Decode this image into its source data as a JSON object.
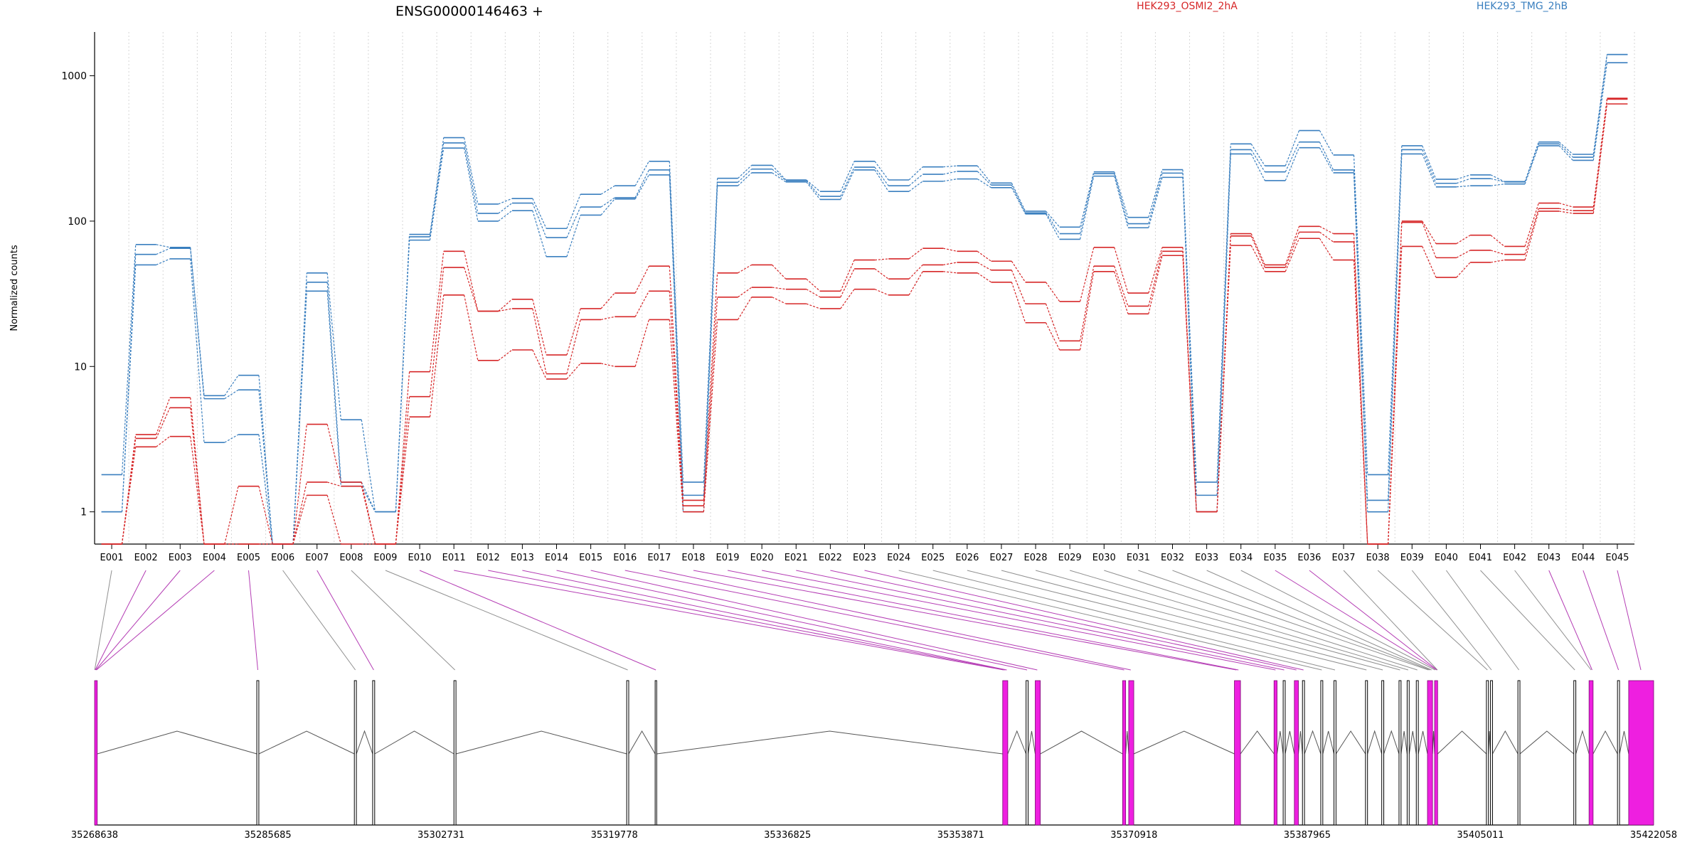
{
  "chart_data": {
    "type": "line",
    "title": "ENSG00000146463 +",
    "ylabel": "Normalized counts",
    "yscale": "log",
    "ylim": [
      0.6,
      2000
    ],
    "yticks": [
      1,
      10,
      100,
      1000
    ],
    "ytick_labels": [
      "1",
      "10",
      "100",
      "1000"
    ],
    "categories": [
      "E001",
      "E002",
      "E003",
      "E004",
      "E005",
      "E006",
      "E007",
      "E008",
      "E009",
      "E010",
      "E011",
      "E012",
      "E013",
      "E014",
      "E015",
      "E016",
      "E017",
      "E018",
      "E019",
      "E020",
      "E021",
      "E022",
      "E023",
      "E024",
      "E025",
      "E026",
      "E027",
      "E028",
      "E029",
      "E030",
      "E031",
      "E032",
      "E033",
      "E034",
      "E035",
      "E036",
      "E037",
      "E038",
      "E039",
      "E040",
      "E041",
      "E042",
      "E043",
      "E044",
      "E045"
    ],
    "legend": [
      {
        "label": "HEK293_OSMI2_2hA",
        "color": "#d62728"
      },
      {
        "label": "HEK293_TMG_2hB",
        "color": "#3a7fbf"
      }
    ],
    "series": [
      {
        "group": "HEK293_TMG_2hB",
        "color": "#3a7fbf",
        "values": [
          1.8,
          69,
          66,
          6.3,
          8.7,
          0.6,
          44,
          4.3,
          1,
          81,
          375,
          131,
          143,
          89,
          153,
          175,
          258,
          1.6,
          197,
          242,
          192,
          160,
          258,
          192,
          236,
          240,
          183,
          117,
          91,
          218,
          106,
          226,
          1.6,
          340,
          240,
          420,
          285,
          1.8,
          330,
          194,
          208,
          187,
          350,
          288,
          1400
        ]
      },
      {
        "group": "HEK293_TMG_2hB",
        "color": "#3a7fbf",
        "values": [
          1,
          59,
          65,
          6,
          6.9,
          0.6,
          38,
          1.6,
          1,
          78,
          345,
          113,
          133,
          77,
          125,
          145,
          225,
          1.3,
          185,
          228,
          190,
          148,
          235,
          175,
          210,
          220,
          177,
          114,
          82,
          212,
          96,
          214,
          1.3,
          310,
          218,
          350,
          225,
          1.2,
          310,
          182,
          196,
          186,
          340,
          275,
          1400
        ]
      },
      {
        "group": "HEK293_TMG_2hB",
        "color": "#3a7fbf",
        "values": [
          1,
          50,
          55,
          3,
          3.4,
          0.6,
          33,
          1.5,
          1,
          74,
          318,
          100,
          118,
          57,
          110,
          142,
          208,
          1,
          175,
          215,
          186,
          141,
          225,
          160,
          188,
          195,
          170,
          112,
          75,
          204,
          90,
          200,
          1,
          290,
          190,
          320,
          215,
          1,
          290,
          172,
          175,
          180,
          330,
          262,
          1230
        ]
      },
      {
        "group": "HEK293_OSMI2_2hA",
        "color": "#d62728",
        "values": [
          0.6,
          3.4,
          6.1,
          0.6,
          0.6,
          0.6,
          4,
          1.6,
          0.6,
          9.2,
          62,
          24,
          29,
          12,
          25,
          32,
          49,
          1.2,
          44,
          50,
          40,
          33,
          54,
          55,
          65,
          62,
          53,
          38,
          28,
          66,
          32,
          66,
          1,
          82,
          50,
          92,
          82,
          0.6,
          100,
          70,
          80,
          67,
          133,
          125,
          700
        ]
      },
      {
        "group": "HEK293_OSMI2_2hA",
        "color": "#d62728",
        "values": [
          0.6,
          3.2,
          5.2,
          0.6,
          1.5,
          0.6,
          1.6,
          1.5,
          0.6,
          6.2,
          48,
          24,
          25,
          8.9,
          21,
          22,
          33,
          1.1,
          30,
          35,
          34,
          30,
          47,
          40,
          50,
          52,
          46,
          27,
          15,
          49,
          26,
          62,
          1,
          79,
          48,
          84,
          72,
          0.6,
          98,
          56,
          63,
          59,
          122,
          118,
          690
        ]
      },
      {
        "group": "HEK293_OSMI2_2hA",
        "color": "#d62728",
        "values": [
          0.6,
          2.8,
          3.3,
          0.6,
          0.6,
          0.6,
          1.3,
          0.6,
          0.6,
          4.5,
          31,
          11,
          13,
          8.2,
          10.5,
          10,
          21,
          1,
          21,
          30,
          27,
          25,
          34,
          31,
          45,
          44,
          38,
          20,
          13,
          45,
          23,
          58,
          1,
          68,
          45,
          76,
          54,
          0.6,
          67,
          41,
          52,
          54,
          117,
          113,
          640
        ]
      }
    ],
    "gene_model": {
      "coordinate_labels": [
        "35268638",
        "35285685",
        "35302731",
        "35319778",
        "35336825",
        "35353871",
        "35370918",
        "35387965",
        "35405011",
        "35422058"
      ],
      "coord_range": [
        35268638,
        35422058
      ],
      "exons": [
        {
          "start": 35268638,
          "end": 35268900,
          "pink": true
        },
        {
          "start": 35284600,
          "end": 35284800,
          "pink": false
        },
        {
          "start": 35294200,
          "end": 35294400,
          "pink": false
        },
        {
          "start": 35296000,
          "end": 35296200,
          "pink": false
        },
        {
          "start": 35304000,
          "end": 35304200,
          "pink": false
        },
        {
          "start": 35321000,
          "end": 35321200,
          "pink": false
        },
        {
          "start": 35323800,
          "end": 35323950,
          "pink": false
        },
        {
          "start": 35358000,
          "end": 35358500,
          "pink": true
        },
        {
          "start": 35360300,
          "end": 35360500,
          "pink": false
        },
        {
          "start": 35361200,
          "end": 35361700,
          "pink": true
        },
        {
          "start": 35369800,
          "end": 35370100,
          "pink": true
        },
        {
          "start": 35370400,
          "end": 35370900,
          "pink": true
        },
        {
          "start": 35380800,
          "end": 35381400,
          "pink": true
        },
        {
          "start": 35384700,
          "end": 35385000,
          "pink": true
        },
        {
          "start": 35385600,
          "end": 35385800,
          "pink": false
        },
        {
          "start": 35386700,
          "end": 35387100,
          "pink": true
        },
        {
          "start": 35387500,
          "end": 35387700,
          "pink": false
        },
        {
          "start": 35389300,
          "end": 35389500,
          "pink": false
        },
        {
          "start": 35390600,
          "end": 35390800,
          "pink": false
        },
        {
          "start": 35393700,
          "end": 35393900,
          "pink": false
        },
        {
          "start": 35395300,
          "end": 35395500,
          "pink": false
        },
        {
          "start": 35397000,
          "end": 35397200,
          "pink": false
        },
        {
          "start": 35397800,
          "end": 35398000,
          "pink": false
        },
        {
          "start": 35398700,
          "end": 35398900,
          "pink": false
        },
        {
          "start": 35399800,
          "end": 35400300,
          "pink": true
        },
        {
          "start": 35400500,
          "end": 35400800,
          "pink": true
        },
        {
          "start": 35405600,
          "end": 35405800,
          "pink": false
        },
        {
          "start": 35406000,
          "end": 35406200,
          "pink": false
        },
        {
          "start": 35408700,
          "end": 35408900,
          "pink": false
        },
        {
          "start": 35414200,
          "end": 35414400,
          "pink": false
        },
        {
          "start": 35415700,
          "end": 35416100,
          "pink": true
        },
        {
          "start": 35418500,
          "end": 35418700,
          "pink": false
        },
        {
          "start": 35419600,
          "end": 35422058,
          "pink": true
        }
      ],
      "mapping": [
        {
          "bin": "E001",
          "coord": 35268650,
          "pink": false
        },
        {
          "bin": "E002",
          "coord": 35268700,
          "pink": true
        },
        {
          "bin": "E003",
          "coord": 35268760,
          "pink": true
        },
        {
          "bin": "E004",
          "coord": 35268820,
          "pink": true
        },
        {
          "bin": "E005",
          "coord": 35284700,
          "pink": true
        },
        {
          "bin": "E006",
          "coord": 35294300,
          "pink": false
        },
        {
          "bin": "E007",
          "coord": 35296100,
          "pink": true
        },
        {
          "bin": "E008",
          "coord": 35304100,
          "pink": false
        },
        {
          "bin": "E009",
          "coord": 35321100,
          "pink": false
        },
        {
          "bin": "E010",
          "coord": 35323870,
          "pink": true
        },
        {
          "bin": "E011",
          "coord": 35358100,
          "pink": true
        },
        {
          "bin": "E012",
          "coord": 35358250,
          "pink": true
        },
        {
          "bin": "E013",
          "coord": 35358400,
          "pink": true
        },
        {
          "bin": "E014",
          "coord": 35360400,
          "pink": true
        },
        {
          "bin": "E015",
          "coord": 35361400,
          "pink": true
        },
        {
          "bin": "E016",
          "coord": 35369950,
          "pink": true
        },
        {
          "bin": "E017",
          "coord": 35370600,
          "pink": true
        },
        {
          "bin": "E018",
          "coord": 35381000,
          "pink": true
        },
        {
          "bin": "E019",
          "coord": 35381200,
          "pink": true
        },
        {
          "bin": "E020",
          "coord": 35384850,
          "pink": true
        },
        {
          "bin": "E021",
          "coord": 35385700,
          "pink": true
        },
        {
          "bin": "E022",
          "coord": 35386900,
          "pink": true
        },
        {
          "bin": "E023",
          "coord": 35387600,
          "pink": true
        },
        {
          "bin": "E024",
          "coord": 35389400,
          "pink": false
        },
        {
          "bin": "E025",
          "coord": 35390700,
          "pink": false
        },
        {
          "bin": "E026",
          "coord": 35393800,
          "pink": false
        },
        {
          "bin": "E027",
          "coord": 35395400,
          "pink": false
        },
        {
          "bin": "E028",
          "coord": 35397100,
          "pink": false
        },
        {
          "bin": "E029",
          "coord": 35397900,
          "pink": false
        },
        {
          "bin": "E030",
          "coord": 35398800,
          "pink": false
        },
        {
          "bin": "E031",
          "coord": 35399900,
          "pink": false
        },
        {
          "bin": "E032",
          "coord": 35400050,
          "pink": false
        },
        {
          "bin": "E033",
          "coord": 35400200,
          "pink": false
        },
        {
          "bin": "E034",
          "coord": 35400550,
          "pink": false
        },
        {
          "bin": "E035",
          "coord": 35400700,
          "pink": true
        },
        {
          "bin": "E036",
          "coord": 35400750,
          "pink": true
        },
        {
          "bin": "E037",
          "coord": 35400780,
          "pink": false
        },
        {
          "bin": "E038",
          "coord": 35405700,
          "pink": false
        },
        {
          "bin": "E039",
          "coord": 35406100,
          "pink": false
        },
        {
          "bin": "E040",
          "coord": 35408800,
          "pink": false
        },
        {
          "bin": "E041",
          "coord": 35414300,
          "pink": false
        },
        {
          "bin": "E042",
          "coord": 35415900,
          "pink": false
        },
        {
          "bin": "E043",
          "coord": 35416000,
          "pink": true
        },
        {
          "bin": "E044",
          "coord": 35418600,
          "pink": true
        },
        {
          "bin": "E045",
          "coord": 35420800,
          "pink": true
        }
      ]
    }
  }
}
